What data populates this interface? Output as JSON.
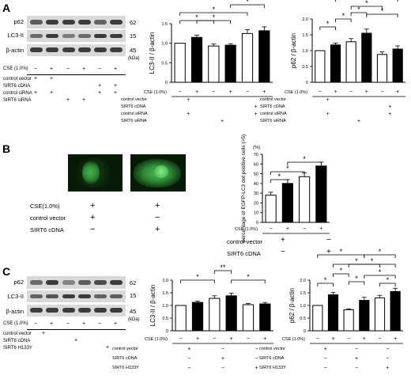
{
  "panels": {
    "A": {
      "letter": "A",
      "blot": {
        "rows": [
          "p62",
          "LC3-II",
          "β-actin"
        ],
        "markers": [
          "62",
          "15",
          "45"
        ],
        "unit": "(kDa)",
        "cse_label": "CSE (1.0%)",
        "cse": [
          "−",
          "+",
          "−",
          "+",
          "−",
          "+"
        ],
        "conditions": [
          {
            "label": "control vector",
            "marks": [
              "+",
              "+",
              "",
              "",
              "",
              ""
            ]
          },
          {
            "label": "SIRT6 cDNA",
            "marks": [
              "",
              "",
              "",
              "",
              "+",
              "+"
            ]
          },
          {
            "label": "control siRNA",
            "marks": [
              "+",
              "+",
              "",
              "",
              "+",
              "+"
            ]
          },
          {
            "label": "SIRT6 siRNA",
            "marks": [
              "",
              "",
              "+",
              "+",
              "",
              ""
            ]
          }
        ]
      },
      "lc3": {
        "ylabel": "LC3-II / β-actin",
        "ylim": [
          0,
          1.5
        ],
        "yticks": [
          "0",
          "0.5",
          "1.0",
          "1.5"
        ],
        "values": [
          1.0,
          1.15,
          0.93,
          0.95,
          1.25,
          1.32
        ],
        "errors": [
          0,
          0.06,
          0.05,
          0.04,
          0.1,
          0.1
        ],
        "cse_label": "CSE (1.0%)",
        "cse": [
          "−",
          "+",
          "−",
          "+",
          "−",
          "+"
        ],
        "conditions": [
          {
            "label": "control vector",
            "marks": [
              "+",
              "",
              ""
            ]
          },
          {
            "label": "SIRT6 cDNA",
            "marks": [
              "",
              "",
              "+"
            ]
          },
          {
            "label": "control siRNA",
            "marks": [
              "+",
              "",
              "+"
            ]
          },
          {
            "label": "SIRT6 siRNA",
            "marks": [
              "",
              "+",
              ""
            ]
          }
        ],
        "sig": [
          "*",
          "*",
          "*",
          "*",
          "*"
        ]
      },
      "p62": {
        "ylabel": "p62 / β-actin",
        "ylim": [
          0,
          2.0
        ],
        "yticks": [
          "0",
          "0.5",
          "1.0",
          "1.5",
          "2.0"
        ],
        "values": [
          1.0,
          1.18,
          1.28,
          1.55,
          0.88,
          1.05
        ],
        "errors": [
          0,
          0.06,
          0.1,
          0.13,
          0.08,
          0.1
        ],
        "cse_label": "CSE (1.0%)",
        "cse": [
          "−",
          "+",
          "−",
          "+",
          "−",
          "+"
        ],
        "conditions": [
          {
            "label": "control vector",
            "marks": [
              "+",
              "",
              ""
            ]
          },
          {
            "label": "SIRT6 cDNA",
            "marks": [
              "",
              "",
              "+"
            ]
          },
          {
            "label": "control siRNA",
            "marks": [
              "+",
              "",
              "+"
            ]
          },
          {
            "label": "SIRT6 siRNA",
            "marks": [
              "",
              "+",
              ""
            ]
          }
        ],
        "sig": [
          "*",
          "*",
          "*",
          "*",
          "*",
          "*"
        ]
      }
    },
    "B": {
      "letter": "B",
      "cse_label": "CSE(1.0%)",
      "img_cse": [
        "+",
        "+"
      ],
      "img_vector": [
        "+",
        "−"
      ],
      "img_sirt6": [
        "−",
        "+"
      ],
      "control_vector": "control vector",
      "sirt6_cdna": "SIRT6 cDNA",
      "chart": {
        "unit": "(%)",
        "ylabel": "percentage of EGFP-LC3 dot positive cells (>5)",
        "ylim": [
          0,
          70
        ],
        "yticks": [
          "0",
          "10",
          "20",
          "30",
          "40",
          "50",
          "60",
          "70"
        ],
        "values": [
          28,
          40,
          47,
          58
        ],
        "errors": [
          3,
          4,
          4,
          4
        ],
        "cse_label": "CSE (1.0%)",
        "cse": [
          "−",
          "+",
          "−",
          "+"
        ],
        "vector": [
          "+",
          "−"
        ],
        "sirt6": [
          "−",
          "+"
        ],
        "sig": [
          "*",
          "*",
          "*"
        ]
      }
    },
    "C": {
      "letter": "C",
      "blot": {
        "rows": [
          "p62",
          "LC3-II",
          "β-actin"
        ],
        "markers": [
          "62",
          "15",
          "45"
        ],
        "unit": "(kDa)",
        "cse_label": "CSE (1.0%)",
        "cse": [
          "−",
          "+",
          "−",
          "+",
          "−",
          "+"
        ],
        "conditions": [
          {
            "label": "control vector",
            "marks": [
              "+",
              "",
              ""
            ]
          },
          {
            "label": "SIRT6 cDNA",
            "marks": [
              "",
              "+",
              ""
            ]
          },
          {
            "label": "SIRT6 H133Y",
            "marks": [
              "",
              "",
              "+"
            ]
          }
        ]
      },
      "lc3": {
        "ylabel": "LC3-II / β-actin",
        "ylim": [
          0,
          2.0
        ],
        "yticks": [
          "0",
          "0.5",
          "1.0",
          "1.5",
          "2.0"
        ],
        "values": [
          1.0,
          1.12,
          1.28,
          1.38,
          1.03,
          1.06
        ],
        "errors": [
          0,
          0.05,
          0.1,
          0.1,
          0.05,
          0.06
        ],
        "cse_label": "CSE (1.0%)",
        "cse": [
          "−",
          "+",
          "−",
          "+",
          "−",
          "+"
        ],
        "conditions": [
          {
            "label": "control vector",
            "marks": [
              "+",
              "−",
              "−"
            ]
          },
          {
            "label": "SIRT6 cDNA",
            "marks": [
              "−",
              "+",
              "−"
            ]
          },
          {
            "label": "SIRT6 H133Y",
            "marks": [
              "−",
              "−",
              "+"
            ]
          }
        ],
        "sig": [
          "*",
          "**",
          "*"
        ]
      },
      "p62": {
        "ylabel": "p62 / β-actin",
        "ylim": [
          0,
          2.0
        ],
        "yticks": [
          "0",
          "0.5",
          "1.0",
          "1.5",
          "2.0"
        ],
        "values": [
          1.0,
          1.42,
          0.83,
          1.2,
          1.3,
          1.55
        ],
        "errors": [
          0,
          0.1,
          0.04,
          0.12,
          0.1,
          0.13
        ],
        "cse_label": "CSE (1.0%)",
        "cse": [
          "−",
          "+",
          "−",
          "+",
          "−",
          "+"
        ],
        "conditions": [
          {
            "label": "control vector",
            "marks": [
              "+",
              "−",
              "−"
            ]
          },
          {
            "label": "SIRT6 cDNA",
            "marks": [
              "−",
              "+",
              "−"
            ]
          },
          {
            "label": "SIRT6 H133Y",
            "marks": [
              "−",
              "−",
              "+"
            ]
          }
        ],
        "sig": [
          "*",
          "*",
          "*",
          "*",
          "*",
          "*",
          "*",
          "*",
          "*"
        ]
      }
    }
  },
  "chart_data": [
    {
      "type": "bar",
      "title": "",
      "ylabel": "LC3-II / β-actin",
      "categories": [
        "1",
        "2",
        "3",
        "4",
        "5",
        "6"
      ],
      "values": [
        1.0,
        1.15,
        0.93,
        0.95,
        1.25,
        1.32
      ],
      "ylim": [
        0,
        1.5
      ]
    },
    {
      "type": "bar",
      "title": "",
      "ylabel": "p62 / β-actin",
      "categories": [
        "1",
        "2",
        "3",
        "4",
        "5",
        "6"
      ],
      "values": [
        1.0,
        1.18,
        1.28,
        1.55,
        0.88,
        1.05
      ],
      "ylim": [
        0,
        2.0
      ]
    },
    {
      "type": "bar",
      "title": "",
      "ylabel": "percentage of EGFP-LC3 dot positive cells (>5)",
      "categories": [
        "1",
        "2",
        "3",
        "4"
      ],
      "values": [
        28,
        40,
        47,
        58
      ],
      "ylim": [
        0,
        70
      ]
    },
    {
      "type": "bar",
      "title": "",
      "ylabel": "LC3-II / β-actin",
      "categories": [
        "1",
        "2",
        "3",
        "4",
        "5",
        "6"
      ],
      "values": [
        1.0,
        1.12,
        1.28,
        1.38,
        1.03,
        1.06
      ],
      "ylim": [
        0,
        2.0
      ]
    },
    {
      "type": "bar",
      "title": "",
      "ylabel": "p62 / β-actin",
      "categories": [
        "1",
        "2",
        "3",
        "4",
        "5",
        "6"
      ],
      "values": [
        1.0,
        1.42,
        0.83,
        1.2,
        1.3,
        1.55
      ],
      "ylim": [
        0,
        2.0
      ]
    }
  ]
}
